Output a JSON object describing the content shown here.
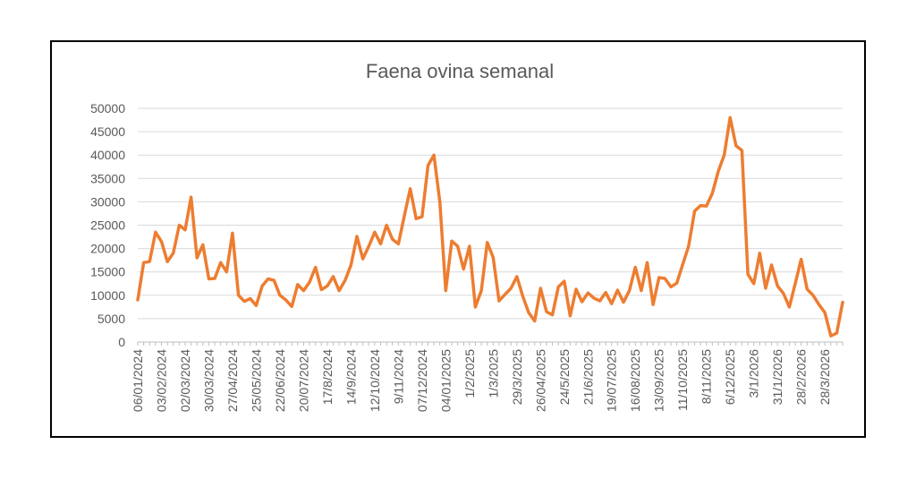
{
  "chart_data": {
    "type": "line",
    "title": "Faena ovina semanal",
    "xlabel": "",
    "ylabel": "",
    "ylim": [
      0,
      50000
    ],
    "yticks": [
      0,
      5000,
      10000,
      15000,
      20000,
      25000,
      30000,
      35000,
      40000,
      45000,
      50000
    ],
    "grid": true,
    "legend": "none",
    "x_tick_labels": [
      "06/01/2024",
      "03/02/2024",
      "02/03/2024",
      "30/03/2024",
      "27/04/2024",
      "25/05/2024",
      "22/06/2024",
      "20/07/2024",
      "17/8/2024",
      "14/9/2024",
      "12/10/2024",
      "9/11/2024",
      "07/12/2024",
      "04/01/2025",
      "1/2/2025",
      "1/3/2025",
      "29/3/2025",
      "26/04/2025",
      "24/5/2025",
      "21/6/2025",
      "19/07/2025",
      "16/08/2025",
      "13/09/2025",
      "11/10/2025",
      "8/11/2025",
      "6/12/2025",
      "3/1/2026",
      "31/1/2026",
      "28/2/2026",
      "28/3/2026"
    ],
    "series": [
      {
        "color": "#ED7D31",
        "values": [
          9000,
          17000,
          17200,
          23500,
          21500,
          17200,
          19000,
          25000,
          24000,
          31000,
          18000,
          20800,
          13500,
          13600,
          17000,
          15000,
          23300,
          10000,
          8700,
          9300,
          7800,
          12000,
          13500,
          13200,
          10000,
          9000,
          7600,
          12300,
          11000,
          12800,
          16000,
          11200,
          12000,
          14000,
          11000,
          13200,
          16500,
          22600,
          17800,
          20500,
          23500,
          21000,
          25000,
          22000,
          21000,
          27000,
          32800,
          26400,
          26800,
          37800,
          40000,
          30000,
          11000,
          21600,
          20500,
          15600,
          20500,
          7500,
          11000,
          21300,
          18100,
          8800,
          10200,
          11500,
          14000,
          9800,
          6300,
          4500,
          11500,
          6500,
          5800,
          11800,
          13000,
          5600,
          11300,
          8600,
          10500,
          9400,
          8800,
          10600,
          8200,
          11100,
          8500,
          11000,
          16000,
          11000,
          17000,
          8000,
          13800,
          13600,
          11800,
          12600,
          16600,
          20500,
          28000,
          29200,
          29100,
          31800,
          36500,
          40000,
          48000,
          42000,
          41000,
          14500,
          12500,
          19000,
          11500,
          16500,
          12000,
          10400,
          7500,
          12500,
          17700,
          11300,
          10000,
          8000,
          6300,
          1300,
          1900,
          8500
        ]
      }
    ]
  }
}
